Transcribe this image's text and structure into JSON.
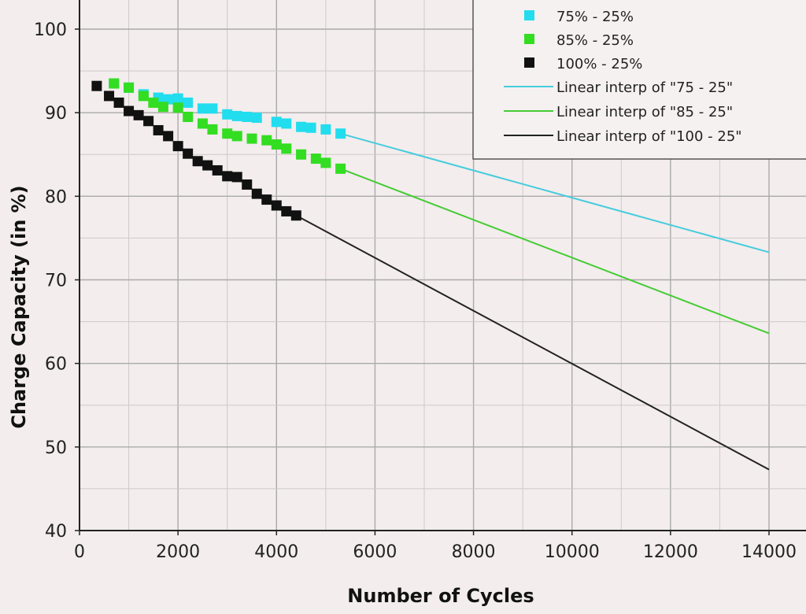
{
  "chart_data": {
    "type": "scatter",
    "xlabel": "Number of Cycles",
    "ylabel": "Charge Capacity (in %)",
    "xlim": [
      0,
      14500
    ],
    "ylim": [
      40,
      103
    ],
    "x_ticks": [
      "0",
      "2000",
      "4000",
      "6000",
      "8000",
      "10000",
      "12000",
      "14000"
    ],
    "y_ticks": [
      "40",
      "50",
      "60",
      "70",
      "80",
      "90",
      "100"
    ],
    "grid": true,
    "legend_position": "top-right",
    "series": [
      {
        "name": "75% - 25%",
        "kind": "points",
        "color": "#22ddee",
        "x": [
          700,
          1000,
          1300,
          1600,
          1800,
          2000,
          2200,
          2500,
          2700,
          3000,
          3200,
          3400,
          3600,
          4000,
          4200,
          4500,
          4700,
          5000,
          5300
        ],
        "y": [
          93.5,
          93.0,
          92.2,
          91.8,
          91.6,
          91.7,
          91.2,
          90.5,
          90.5,
          89.8,
          89.6,
          89.5,
          89.4,
          88.9,
          88.7,
          88.3,
          88.2,
          88.0,
          87.5
        ]
      },
      {
        "name": "85% - 25%",
        "kind": "points",
        "color": "#33dd22",
        "x": [
          700,
          1000,
          1300,
          1500,
          1700,
          2000,
          2200,
          2500,
          2700,
          3000,
          3200,
          3500,
          3800,
          4000,
          4200,
          4500,
          4800,
          5000,
          5300
        ],
        "y": [
          93.5,
          93.0,
          92.0,
          91.2,
          90.7,
          90.6,
          89.5,
          88.7,
          88.0,
          87.5,
          87.2,
          86.9,
          86.7,
          86.2,
          85.7,
          85.0,
          84.5,
          84.0,
          83.3
        ]
      },
      {
        "name": "100% - 25%",
        "kind": "points",
        "color": "#111111",
        "x": [
          350,
          600,
          800,
          1000,
          1200,
          1400,
          1600,
          1800,
          2000,
          2200,
          2400,
          2600,
          2800,
          3000,
          3200,
          3400,
          3600,
          3800,
          4000,
          4200,
          4400
        ],
        "y": [
          93.2,
          92.0,
          91.2,
          90.2,
          89.7,
          89.0,
          87.9,
          87.2,
          86.0,
          85.1,
          84.2,
          83.7,
          83.1,
          82.4,
          82.3,
          81.4,
          80.3,
          79.6,
          78.9,
          78.2,
          77.7
        ]
      },
      {
        "name": "Linear interp of \"75 - 25\"",
        "kind": "line",
        "color": "#44ccdd",
        "x": [
          5300,
          14000
        ],
        "y": [
          87.5,
          73.3
        ]
      },
      {
        "name": "Linear interp of \"85 - 25\"",
        "kind": "line",
        "color": "#44cc33",
        "x": [
          5300,
          14000
        ],
        "y": [
          83.3,
          63.6
        ]
      },
      {
        "name": "Linear interp of \"100 - 25\"",
        "kind": "line",
        "color": "#222222",
        "x": [
          4400,
          14000
        ],
        "y": [
          77.7,
          47.3
        ]
      }
    ]
  }
}
